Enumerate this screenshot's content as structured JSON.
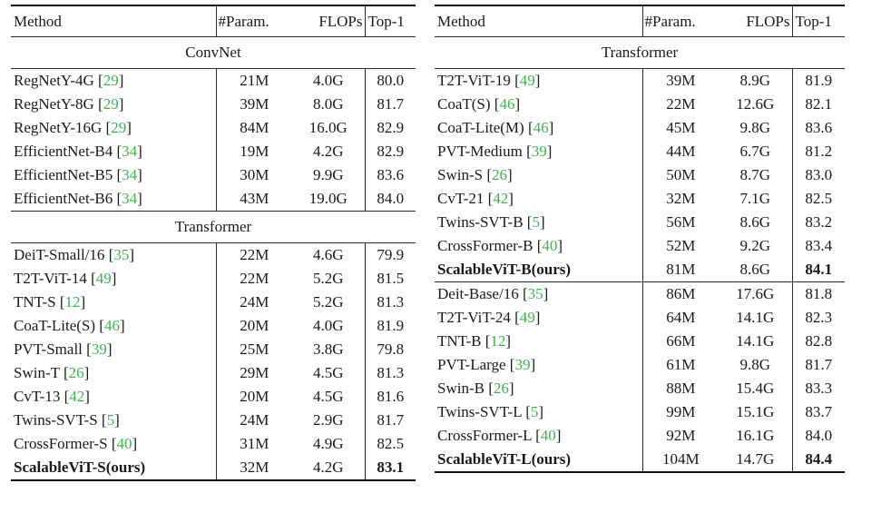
{
  "meta": {
    "citation_color": "#3cb44b",
    "text_color": "#1a1a1a",
    "citation_brackets": [
      "[",
      "]"
    ]
  },
  "tables": [
    {
      "id": "left",
      "header": {
        "method": "Method",
        "param": "#Param.",
        "flops": "FLOPs",
        "top1": "Top-1"
      },
      "sections": [
        {
          "label": "ConvNet",
          "rows": [
            {
              "method": "RegNetY-4G",
              "cite": "29",
              "param": "21M",
              "flops": "4.0G",
              "top1": "80.0",
              "bold": false
            },
            {
              "method": "RegNetY-8G",
              "cite": "29",
              "param": "39M",
              "flops": "8.0G",
              "top1": "81.7",
              "bold": false
            },
            {
              "method": "RegNetY-16G",
              "cite": "29",
              "param": "84M",
              "flops": "16.0G",
              "top1": "82.9",
              "bold": false
            },
            {
              "method": "EfficientNet-B4",
              "cite": "34",
              "param": "19M",
              "flops": "4.2G",
              "top1": "82.9",
              "bold": false
            },
            {
              "method": "EfficientNet-B5",
              "cite": "34",
              "param": "30M",
              "flops": "9.9G",
              "top1": "83.6",
              "bold": false
            },
            {
              "method": "EfficientNet-B6",
              "cite": "34",
              "param": "43M",
              "flops": "19.0G",
              "top1": "84.0",
              "bold": false
            }
          ]
        },
        {
          "label": "Transformer",
          "rows": [
            {
              "method": "DeiT-Small/16",
              "cite": "35",
              "param": "22M",
              "flops": "4.6G",
              "top1": "79.9",
              "bold": false
            },
            {
              "method": "T2T-ViT-14",
              "cite": "49",
              "param": "22M",
              "flops": "5.2G",
              "top1": "81.5",
              "bold": false
            },
            {
              "method": "TNT-S",
              "cite": "12",
              "param": "24M",
              "flops": "5.2G",
              "top1": "81.3",
              "bold": false
            },
            {
              "method": "CoaT-Lite(S)",
              "cite": "46",
              "param": "20M",
              "flops": "4.0G",
              "top1": "81.9",
              "bold": false
            },
            {
              "method": "PVT-Small",
              "cite": "39",
              "param": "25M",
              "flops": "3.8G",
              "top1": "79.8",
              "bold": false
            },
            {
              "method": "Swin-T",
              "cite": "26",
              "param": "29M",
              "flops": "4.5G",
              "top1": "81.3",
              "bold": false
            },
            {
              "method": "CvT-13",
              "cite": "42",
              "param": "20M",
              "flops": "4.5G",
              "top1": "81.6",
              "bold": false
            },
            {
              "method": "Twins-SVT-S",
              "cite": "5",
              "param": "24M",
              "flops": "2.9G",
              "top1": "81.7",
              "bold": false
            },
            {
              "method": "CrossFormer-S",
              "cite": "40",
              "param": "31M",
              "flops": "4.9G",
              "top1": "82.5",
              "bold": false
            },
            {
              "method": "ScalableViT-S(ours)",
              "cite": null,
              "param": "32M",
              "flops": "4.2G",
              "top1": "83.1",
              "bold": true
            }
          ]
        }
      ]
    },
    {
      "id": "right",
      "header": {
        "method": "Method",
        "param": "#Param.",
        "flops": "FLOPs",
        "top1": "Top-1"
      },
      "sections": [
        {
          "label": "Transformer",
          "rows": [
            {
              "method": "T2T-ViT-19",
              "cite": "49",
              "param": "39M",
              "flops": "8.9G",
              "top1": "81.9",
              "bold": false
            },
            {
              "method": "CoaT(S)",
              "cite": "46",
              "param": "22M",
              "flops": "12.6G",
              "top1": "82.1",
              "bold": false
            },
            {
              "method": "CoaT-Lite(M)",
              "cite": "46",
              "param": "45M",
              "flops": "9.8G",
              "top1": "83.6",
              "bold": false
            },
            {
              "method": "PVT-Medium",
              "cite": "39",
              "param": "44M",
              "flops": "6.7G",
              "top1": "81.2",
              "bold": false
            },
            {
              "method": "Swin-S",
              "cite": "26",
              "param": "50M",
              "flops": "8.7G",
              "top1": "83.0",
              "bold": false
            },
            {
              "method": "CvT-21",
              "cite": "42",
              "param": "32M",
              "flops": "7.1G",
              "top1": "82.5",
              "bold": false
            },
            {
              "method": "Twins-SVT-B",
              "cite": "5",
              "param": "56M",
              "flops": "8.6G",
              "top1": "83.2",
              "bold": false
            },
            {
              "method": "CrossFormer-B",
              "cite": "40",
              "param": "52M",
              "flops": "9.2G",
              "top1": "83.4",
              "bold": false
            },
            {
              "method": "ScalableViT-B(ours)",
              "cite": null,
              "param": "81M",
              "flops": "8.6G",
              "top1": "84.1",
              "bold": true
            }
          ]
        },
        {
          "label": null,
          "rows": [
            {
              "method": "Deit-Base/16",
              "cite": "35",
              "param": "86M",
              "flops": "17.6G",
              "top1": "81.8",
              "bold": false
            },
            {
              "method": "T2T-ViT-24",
              "cite": "49",
              "param": "64M",
              "flops": "14.1G",
              "top1": "82.3",
              "bold": false
            },
            {
              "method": "TNT-B",
              "cite": "12",
              "param": "66M",
              "flops": "14.1G",
              "top1": "82.8",
              "bold": false
            },
            {
              "method": "PVT-Large",
              "cite": "39",
              "param": "61M",
              "flops": "9.8G",
              "top1": "81.7",
              "bold": false
            },
            {
              "method": "Swin-B",
              "cite": "26",
              "param": "88M",
              "flops": "15.4G",
              "top1": "83.3",
              "bold": false
            },
            {
              "method": "Twins-SVT-L",
              "cite": "5",
              "param": "99M",
              "flops": "15.1G",
              "top1": "83.7",
              "bold": false
            },
            {
              "method": "CrossFormer-L",
              "cite": "40",
              "param": "92M",
              "flops": "16.1G",
              "top1": "84.0",
              "bold": false
            },
            {
              "method": "ScalableViT-L(ours)",
              "cite": null,
              "param": "104M",
              "flops": "14.7G",
              "top1": "84.4",
              "bold": true
            }
          ]
        }
      ]
    }
  ]
}
